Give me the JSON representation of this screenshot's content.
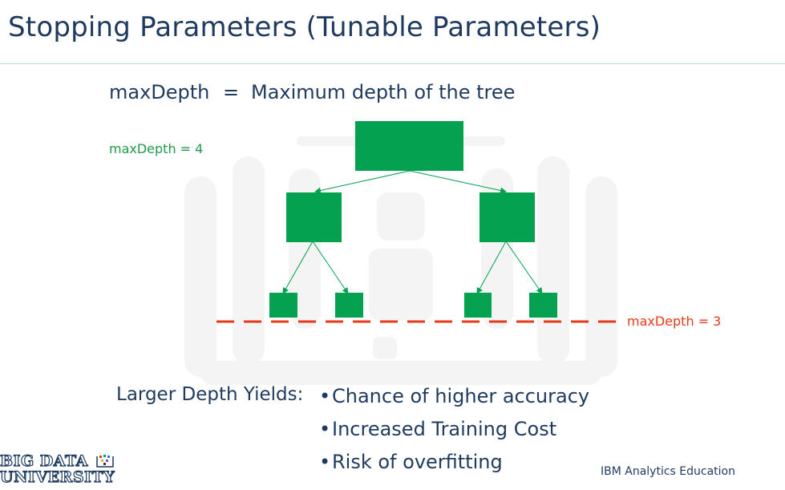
{
  "slide": {
    "title": "Stopping Parameters (Tunable Parameters)"
  },
  "definition": {
    "term": "maxDepth",
    "equals": "=",
    "description": "Maximum depth of the tree"
  },
  "tree": {
    "green_label": "maxDepth = 4",
    "red_label": "maxDepth = 3",
    "node_color": "#03a150",
    "cut_line_color": "#e5391b"
  },
  "yields": {
    "label": "Larger Depth Yields:",
    "bullet_glyph": "•",
    "items": [
      "Chance of higher accuracy",
      "Increased Training Cost",
      "Risk of overfitting"
    ]
  },
  "footer": {
    "text": "IBM Analytics Education"
  },
  "logo": {
    "line1": "BIG DATA",
    "line2": "UNIVERSITY",
    "icon": "book-dots-icon"
  }
}
